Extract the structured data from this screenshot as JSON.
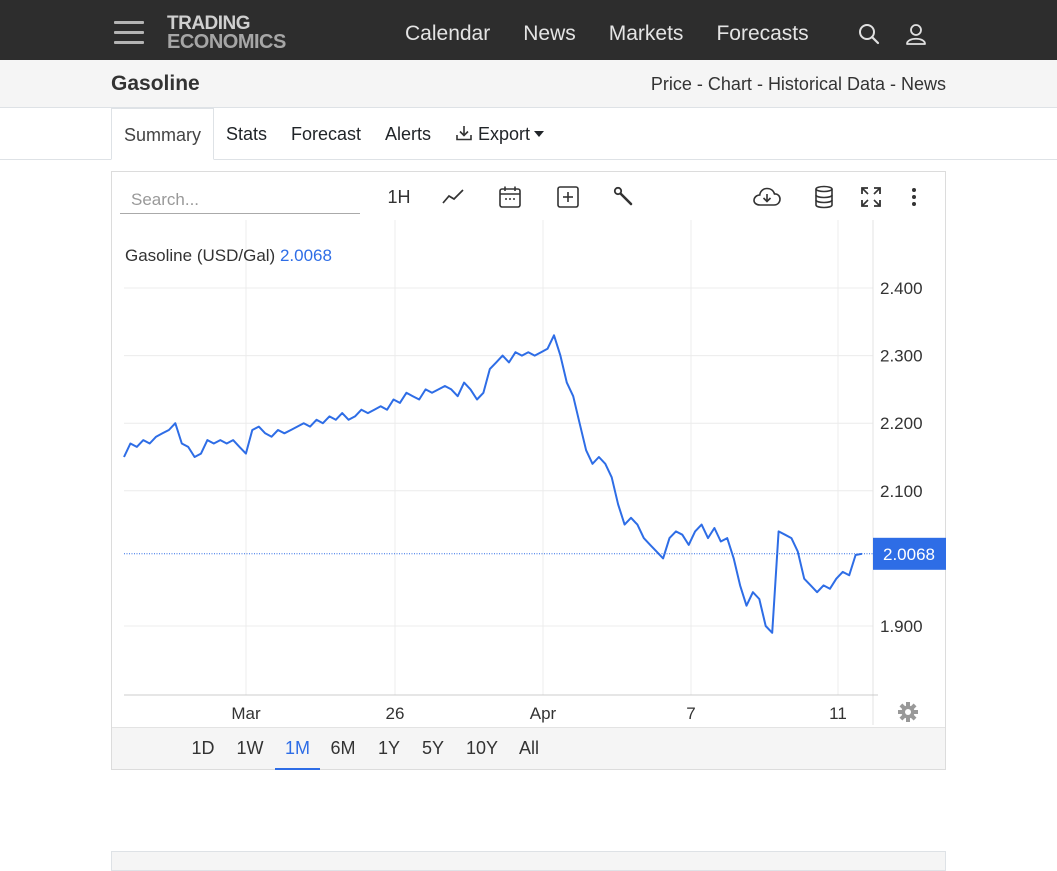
{
  "brand": {
    "line1": "TRADING",
    "line2": "ECONOMICS"
  },
  "nav": {
    "links": [
      "Calendar",
      "News",
      "Markets",
      "Forecasts"
    ]
  },
  "page": {
    "title": "Gasoline",
    "links": [
      "Price",
      "Chart",
      "Historical Data",
      "News"
    ],
    "separator": "-"
  },
  "tabs": {
    "summary": "Summary",
    "stats": "Stats",
    "forecast": "Forecast",
    "alerts": "Alerts",
    "export": "Export"
  },
  "toolbar": {
    "search_placeholder": "Search...",
    "interval": "1H"
  },
  "periods": {
    "items": [
      "1D",
      "1W",
      "1M",
      "6M",
      "1Y",
      "5Y",
      "10Y",
      "All"
    ],
    "active": "1M"
  },
  "icons": [
    "menu-icon",
    "search-icon",
    "user-icon",
    "download-icon",
    "line-chart-icon",
    "calendar-icon",
    "add-box-icon",
    "wrench-icon",
    "cloud-download-icon",
    "database-icon",
    "fullscreen-icon",
    "more-vertical-icon",
    "gear-icon"
  ],
  "colors": {
    "series": "#2e6de6",
    "navbar": "#2d2d2d",
    "titlebar": "#f5f5f5"
  },
  "chart_data": {
    "type": "line",
    "legend_label": "Gasoline (USD/Gal)",
    "last_value": "2.0068",
    "last_price": 2.0068,
    "y_ticks": [
      "2.400",
      "2.300",
      "2.200",
      "2.100",
      "1.900"
    ],
    "x_ticks": [
      "Mar",
      "26",
      "Apr",
      "7",
      "11"
    ],
    "ylim": [
      1.8,
      2.5
    ],
    "grid": true,
    "series": [
      {
        "values": [
          2.15,
          2.17,
          2.165,
          2.175,
          2.17,
          2.18,
          2.185,
          2.19,
          2.2,
          2.17,
          2.165,
          2.15,
          2.155,
          2.175,
          2.17,
          2.175,
          2.17,
          2.175,
          2.165,
          2.155,
          2.19,
          2.195,
          2.185,
          2.18,
          2.19,
          2.185,
          2.19,
          2.195,
          2.2,
          2.195,
          2.205,
          2.2,
          2.21,
          2.205,
          2.215,
          2.205,
          2.21,
          2.22,
          2.215,
          2.22,
          2.225,
          2.22,
          2.235,
          2.23,
          2.245,
          2.24,
          2.235,
          2.25,
          2.245,
          2.25,
          2.255,
          2.25,
          2.24,
          2.26,
          2.25,
          2.235,
          2.245,
          2.28,
          2.29,
          2.3,
          2.29,
          2.305,
          2.3,
          2.305,
          2.3,
          2.305,
          2.31,
          2.33,
          2.3,
          2.26,
          2.24,
          2.2,
          2.16,
          2.14,
          2.15,
          2.14,
          2.12,
          2.08,
          2.05,
          2.06,
          2.05,
          2.03,
          2.02,
          2.01,
          2.0,
          2.03,
          2.04,
          2.035,
          2.02,
          2.04,
          2.05,
          2.03,
          2.045,
          2.025,
          2.03,
          2.0,
          1.96,
          1.93,
          1.95,
          1.94,
          1.9,
          1.89,
          2.04,
          2.035,
          2.03,
          2.01,
          1.97,
          1.96,
          1.95,
          1.96,
          1.955,
          1.97,
          1.98,
          1.975,
          2.005,
          2.0068
        ]
      }
    ]
  }
}
